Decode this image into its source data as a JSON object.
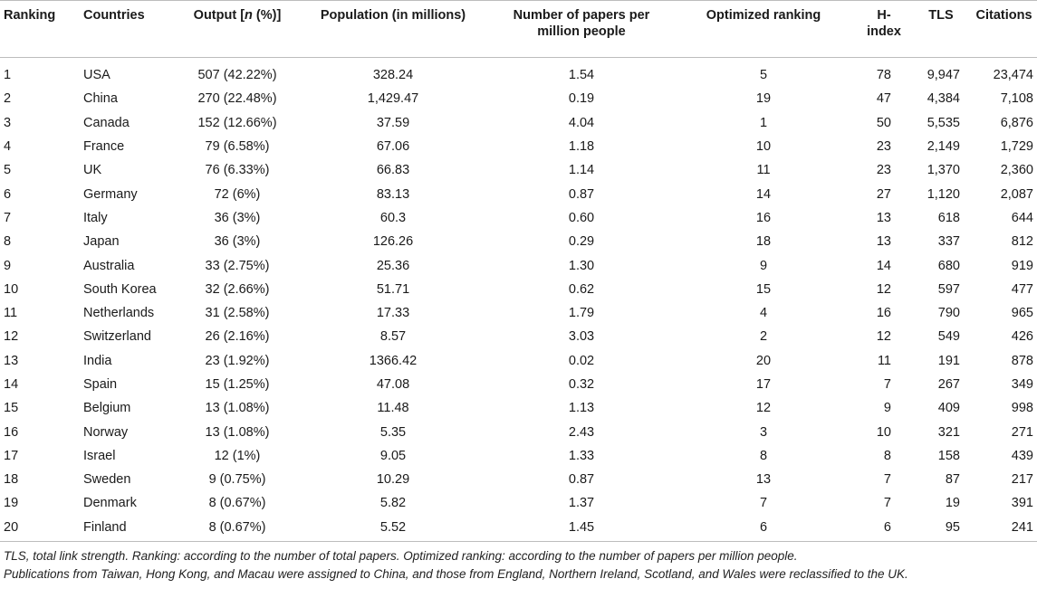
{
  "headers": {
    "ranking": "Ranking",
    "countries": "Countries",
    "output_prefix": "Output [",
    "output_n": "n",
    "output_suffix": " (%)]",
    "population": "Population (in millions)",
    "papers_per_million": "Number of papers per million people",
    "optimized_ranking": "Optimized ranking",
    "h_index": "H-index",
    "tls": "TLS",
    "citations": "Citations"
  },
  "rows": [
    [
      "1",
      "USA",
      "507 (42.22%)",
      "328.24",
      "1.54",
      "5",
      "78",
      "9,947",
      "23,474"
    ],
    [
      "2",
      "China",
      "270 (22.48%)",
      "1,429.47",
      "0.19",
      "19",
      "47",
      "4,384",
      "7,108"
    ],
    [
      "3",
      "Canada",
      "152 (12.66%)",
      "37.59",
      "4.04",
      "1",
      "50",
      "5,535",
      "6,876"
    ],
    [
      "4",
      "France",
      "79 (6.58%)",
      "67.06",
      "1.18",
      "10",
      "23",
      "2,149",
      "1,729"
    ],
    [
      "5",
      "UK",
      "76 (6.33%)",
      "66.83",
      "1.14",
      "11",
      "23",
      "1,370",
      "2,360"
    ],
    [
      "6",
      "Germany",
      "72 (6%)",
      "83.13",
      "0.87",
      "14",
      "27",
      "1,120",
      "2,087"
    ],
    [
      "7",
      "Italy",
      "36 (3%)",
      "60.3",
      "0.60",
      "16",
      "13",
      "618",
      "644"
    ],
    [
      "8",
      "Japan",
      "36 (3%)",
      "126.26",
      "0.29",
      "18",
      "13",
      "337",
      "812"
    ],
    [
      "9",
      "Australia",
      "33 (2.75%)",
      "25.36",
      "1.30",
      "9",
      "14",
      "680",
      "919"
    ],
    [
      "10",
      "South Korea",
      "32 (2.66%)",
      "51.71",
      "0.62",
      "15",
      "12",
      "597",
      "477"
    ],
    [
      "11",
      "Netherlands",
      "31 (2.58%)",
      "17.33",
      "1.79",
      "4",
      "16",
      "790",
      "965"
    ],
    [
      "12",
      "Switzerland",
      "26 (2.16%)",
      "8.57",
      "3.03",
      "2",
      "12",
      "549",
      "426"
    ],
    [
      "13",
      "India",
      "23 (1.92%)",
      "1366.42",
      "0.02",
      "20",
      "11",
      "191",
      "878"
    ],
    [
      "14",
      "Spain",
      "15 (1.25%)",
      "47.08",
      "0.32",
      "17",
      "7",
      "267",
      "349"
    ],
    [
      "15",
      "Belgium",
      "13 (1.08%)",
      "11.48",
      "1.13",
      "12",
      "9",
      "409",
      "998"
    ],
    [
      "16",
      "Norway",
      "13 (1.08%)",
      "5.35",
      "2.43",
      "3",
      "10",
      "321",
      "271"
    ],
    [
      "17",
      "Israel",
      "12 (1%)",
      "9.05",
      "1.33",
      "8",
      "8",
      "158",
      "439"
    ],
    [
      "18",
      "Sweden",
      "9 (0.75%)",
      "10.29",
      "0.87",
      "13",
      "7",
      "87",
      "217"
    ],
    [
      "19",
      "Denmark",
      "8 (0.67%)",
      "5.82",
      "1.37",
      "7",
      "7",
      "19",
      "391"
    ],
    [
      "20",
      "Finland",
      "8 (0.67%)",
      "5.52",
      "1.45",
      "6",
      "6",
      "95",
      "241"
    ]
  ],
  "footnotes": [
    "TLS, total link strength. Ranking: according to the number of total papers. Optimized ranking: according to the number of papers per million people.",
    "Publications from Taiwan, Hong Kong, and Macau were assigned to China, and those from England, Northern Ireland, Scotland, and Wales were reclassified to the UK."
  ]
}
